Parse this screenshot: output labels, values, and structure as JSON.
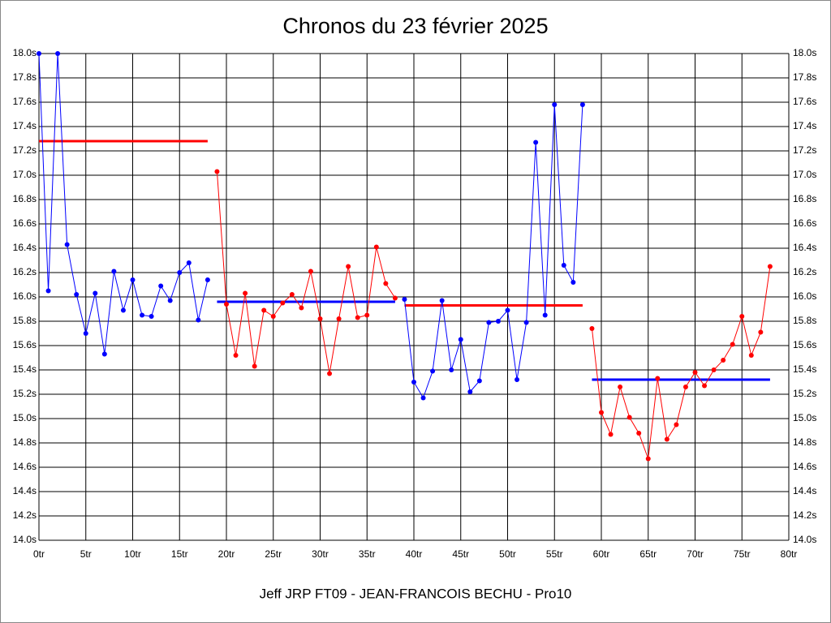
{
  "chart_data": {
    "type": "line",
    "title": "Chronos du 23 février 2025",
    "footer": "Jeff JRP FT09 - JEAN-FRANCOIS BECHU - Pro10",
    "xlim": [
      0,
      80
    ],
    "xticks": [
      {
        "value": 0,
        "label": "0tr"
      },
      {
        "value": 5,
        "label": "5tr"
      },
      {
        "value": 10,
        "label": "10tr"
      },
      {
        "value": 15,
        "label": "15tr"
      },
      {
        "value": 20,
        "label": "20tr"
      },
      {
        "value": 25,
        "label": "25tr"
      },
      {
        "value": 30,
        "label": "30tr"
      },
      {
        "value": 35,
        "label": "35tr"
      },
      {
        "value": 40,
        "label": "40tr"
      },
      {
        "value": 45,
        "label": "45tr"
      },
      {
        "value": 50,
        "label": "50tr"
      },
      {
        "value": 55,
        "label": "55tr"
      },
      {
        "value": 60,
        "label": "60tr"
      },
      {
        "value": 65,
        "label": "65tr"
      },
      {
        "value": 70,
        "label": "70tr"
      },
      {
        "value": 75,
        "label": "75tr"
      },
      {
        "value": 80,
        "label": "80tr"
      }
    ],
    "ylim": [
      14.0,
      18.0
    ],
    "yticks": [
      {
        "value": 14.0,
        "label": "14.0s"
      },
      {
        "value": 14.2,
        "label": "14.2s"
      },
      {
        "value": 14.4,
        "label": "14.4s"
      },
      {
        "value": 14.6,
        "label": "14.6s"
      },
      {
        "value": 14.8,
        "label": "14.8s"
      },
      {
        "value": 15.0,
        "label": "15.0s"
      },
      {
        "value": 15.2,
        "label": "15.2s"
      },
      {
        "value": 15.4,
        "label": "15.4s"
      },
      {
        "value": 15.6,
        "label": "15.6s"
      },
      {
        "value": 15.8,
        "label": "15.8s"
      },
      {
        "value": 16.0,
        "label": "16.0s"
      },
      {
        "value": 16.2,
        "label": "16.2s"
      },
      {
        "value": 16.4,
        "label": "16.4s"
      },
      {
        "value": 16.6,
        "label": "16.6s"
      },
      {
        "value": 16.8,
        "label": "16.8s"
      },
      {
        "value": 17.0,
        "label": "17.0s"
      },
      {
        "value": 17.2,
        "label": "17.2s"
      },
      {
        "value": 17.4,
        "label": "17.4s"
      },
      {
        "value": 17.6,
        "label": "17.6s"
      },
      {
        "value": 17.8,
        "label": "17.8s"
      },
      {
        "value": 18.0,
        "label": "18.0s"
      }
    ],
    "grid": true,
    "series": [
      {
        "color": "#0000ff",
        "x": [
          0,
          1,
          2,
          3,
          4,
          5,
          6,
          7,
          8,
          9,
          10,
          11,
          12,
          13,
          14,
          15,
          16,
          17,
          18
        ],
        "values": [
          18.0,
          16.05,
          18.0,
          16.43,
          16.02,
          15.7,
          16.03,
          15.53,
          16.21,
          15.89,
          16.14,
          15.85,
          15.84,
          16.09,
          15.97,
          16.2,
          16.28,
          15.81,
          16.14
        ]
      },
      {
        "color": "#ff0000",
        "x": [
          19,
          20,
          21,
          22,
          23,
          24,
          25,
          26,
          27,
          28,
          29,
          30,
          31,
          32,
          33,
          34,
          35,
          36,
          37,
          38
        ],
        "values": [
          17.03,
          15.94,
          15.52,
          16.03,
          15.43,
          15.89,
          15.84,
          15.95,
          16.02,
          15.91,
          16.21,
          15.82,
          15.37,
          15.82,
          16.25,
          15.83,
          15.85,
          16.41,
          16.11,
          15.99
        ]
      },
      {
        "color": "#0000ff",
        "x": [
          39,
          40,
          41,
          42,
          43,
          44,
          45,
          46,
          47,
          48,
          49,
          50,
          51,
          52,
          53,
          54,
          55,
          56,
          57,
          58
        ],
        "values": [
          15.98,
          15.3,
          15.17,
          15.39,
          15.97,
          15.4,
          15.65,
          15.22,
          15.31,
          15.79,
          15.8,
          15.89,
          15.32,
          15.79,
          17.27,
          15.85,
          17.58,
          16.26,
          16.12,
          17.58
        ]
      },
      {
        "color": "#ff0000",
        "x": [
          59,
          60,
          61,
          62,
          63,
          64,
          65,
          66,
          67,
          68,
          69,
          70,
          71,
          72,
          73,
          74,
          75,
          76,
          77,
          78
        ],
        "values": [
          15.74,
          15.05,
          14.87,
          15.26,
          15.01,
          14.88,
          14.67,
          15.33,
          14.83,
          14.95,
          15.26,
          15.38,
          15.27,
          15.4,
          15.48,
          15.61,
          15.84,
          15.52,
          15.71,
          16.25
        ]
      }
    ],
    "averages": [
      {
        "color": "#ff0000",
        "x": [
          0,
          18
        ],
        "values": [
          17.28,
          17.28
        ]
      },
      {
        "color": "#0000ff",
        "x": [
          19,
          38
        ],
        "values": [
          15.96,
          15.96
        ]
      },
      {
        "color": "#ff0000",
        "x": [
          39,
          58
        ],
        "values": [
          15.93,
          15.93
        ]
      },
      {
        "color": "#0000ff",
        "x": [
          59,
          78
        ],
        "values": [
          15.32,
          15.32
        ]
      }
    ]
  }
}
